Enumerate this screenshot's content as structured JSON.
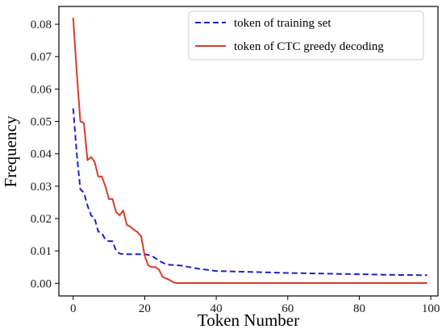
{
  "chart_data": {
    "type": "line",
    "title": "",
    "xlabel": "Token Number",
    "ylabel": "Frequency",
    "xlim": [
      -4,
      102
    ],
    "ylim": [
      -0.0039,
      0.0855
    ],
    "xticks": [
      0,
      20,
      40,
      60,
      80,
      100
    ],
    "xtick_labels": [
      "0",
      "20",
      "40",
      "60",
      "80",
      "100"
    ],
    "yticks": [
      0.0,
      0.01,
      0.02,
      0.03,
      0.04,
      0.05,
      0.06,
      0.07,
      0.08
    ],
    "ytick_labels": [
      "0.00",
      "0.01",
      "0.02",
      "0.03",
      "0.04",
      "0.05",
      "0.06",
      "0.07",
      "0.08"
    ],
    "grid": false,
    "legend_position": "top-right",
    "series": [
      {
        "name": "token of training set",
        "color": "#1f1fd1",
        "style": "dashed",
        "points": [
          [
            0,
            0.054
          ],
          [
            1,
            0.04
          ],
          [
            2,
            0.029
          ],
          [
            3,
            0.028
          ],
          [
            4,
            0.024
          ],
          [
            5,
            0.021
          ],
          [
            6,
            0.02
          ],
          [
            7,
            0.016
          ],
          [
            8,
            0.0155
          ],
          [
            9,
            0.0135
          ],
          [
            10,
            0.013
          ],
          [
            11,
            0.013
          ],
          [
            12,
            0.01
          ],
          [
            13,
            0.0092
          ],
          [
            14,
            0.009
          ],
          [
            20,
            0.009
          ],
          [
            22,
            0.0085
          ],
          [
            24,
            0.007
          ],
          [
            26,
            0.0058
          ],
          [
            30,
            0.0055
          ],
          [
            35,
            0.0045
          ],
          [
            40,
            0.0038
          ],
          [
            50,
            0.0035
          ],
          [
            60,
            0.0032
          ],
          [
            70,
            0.003
          ],
          [
            80,
            0.0028
          ],
          [
            90,
            0.0026
          ],
          [
            99,
            0.0025
          ]
        ]
      },
      {
        "name": "token of CTC greedy decoding",
        "color": "#d93b2b",
        "style": "solid",
        "points": [
          [
            0,
            0.082
          ],
          [
            1,
            0.065
          ],
          [
            2,
            0.05
          ],
          [
            3,
            0.0495
          ],
          [
            4,
            0.038
          ],
          [
            5,
            0.039
          ],
          [
            6,
            0.0375
          ],
          [
            7,
            0.033
          ],
          [
            8,
            0.033
          ],
          [
            9,
            0.03
          ],
          [
            10,
            0.026
          ],
          [
            11,
            0.026
          ],
          [
            12,
            0.022
          ],
          [
            13,
            0.021
          ],
          [
            14,
            0.0225
          ],
          [
            15,
            0.018
          ],
          [
            16,
            0.0175
          ],
          [
            17,
            0.0165
          ],
          [
            18,
            0.0158
          ],
          [
            19,
            0.0145
          ],
          [
            20,
            0.0085
          ],
          [
            21,
            0.0055
          ],
          [
            22,
            0.005
          ],
          [
            23,
            0.005
          ],
          [
            24,
            0.0042
          ],
          [
            25,
            0.002
          ],
          [
            26,
            0.0015
          ],
          [
            27,
            0.001
          ],
          [
            28,
            0.0003
          ],
          [
            29,
            0.0001
          ],
          [
            30,
            0.0001
          ],
          [
            50,
            0.0001
          ],
          [
            99,
            0.0001
          ]
        ]
      }
    ]
  }
}
